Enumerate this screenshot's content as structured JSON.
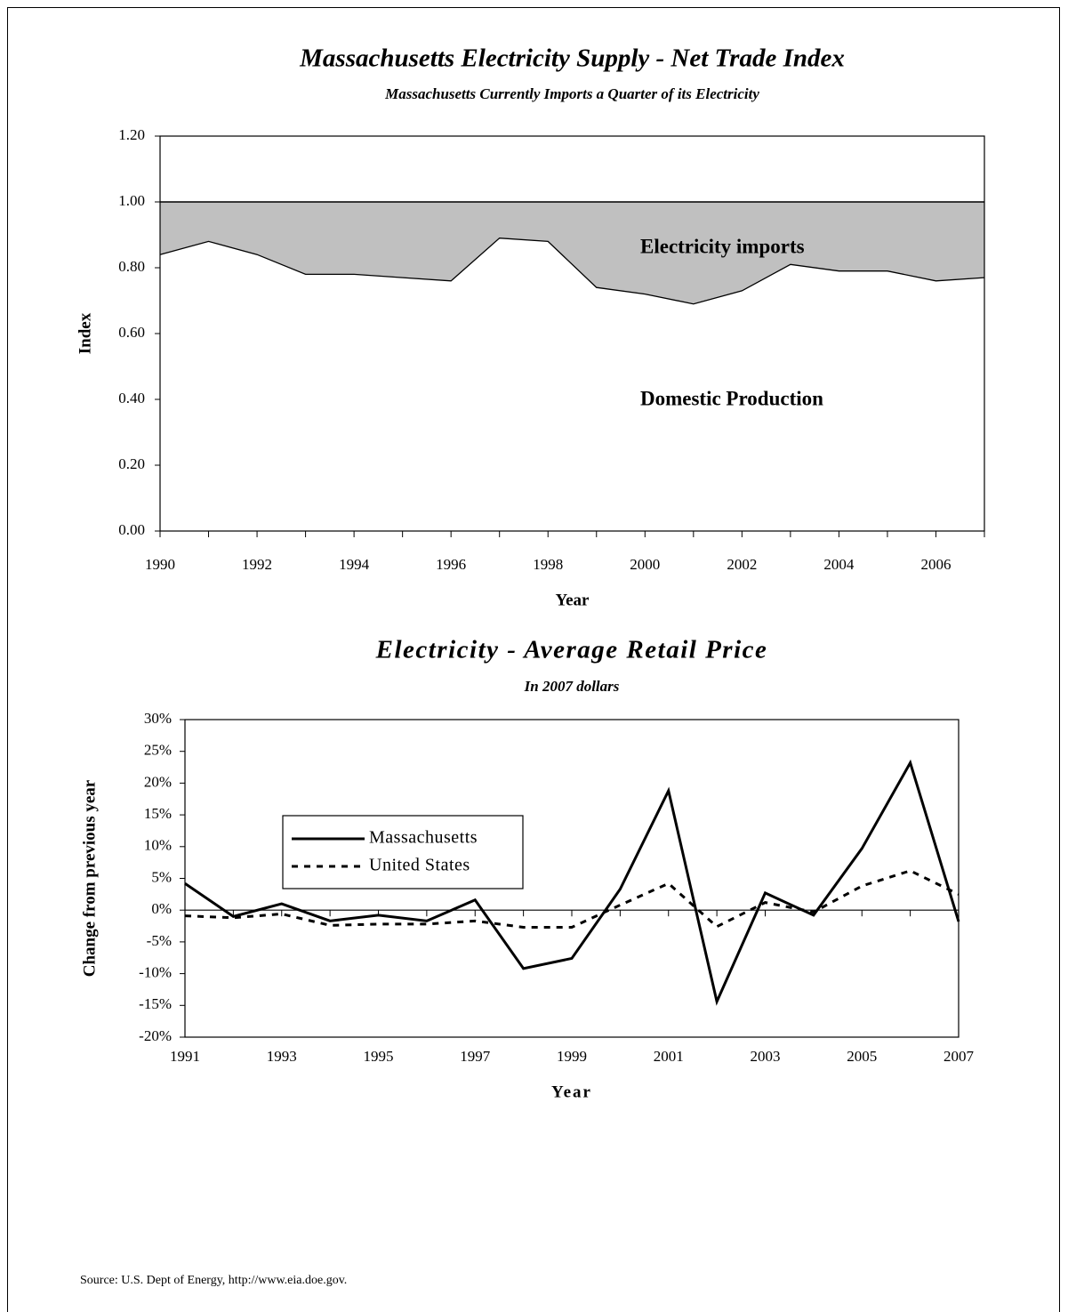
{
  "chart_data": [
    {
      "type": "area",
      "title": "Massachusetts Electricity Supply - Net Trade Index",
      "subtitle": "Massachusetts Currently Imports a Quarter of its Electricity",
      "x_label": "Year",
      "y_label": "Index",
      "x": [
        1990,
        1991,
        1992,
        1993,
        1994,
        1995,
        1996,
        1997,
        1998,
        1999,
        2000,
        2001,
        2002,
        2003,
        2004,
        2005,
        2006,
        2007
      ],
      "values": [
        0.84,
        0.88,
        0.84,
        0.78,
        0.78,
        0.77,
        0.76,
        0.89,
        0.88,
        0.74,
        0.72,
        0.69,
        0.73,
        0.81,
        0.79,
        0.79,
        0.76,
        0.77
      ],
      "color": "#c0c0c0",
      "line_color": "#000000",
      "fill_to": 1,
      "xlim": [
        1990,
        2007
      ],
      "xticks": [
        1990,
        1992,
        1994,
        1996,
        1998,
        2000,
        2002,
        2004,
        2006
      ],
      "ylim": [
        0,
        1.2
      ],
      "yticks": [
        {
          "value": 0,
          "label": "0.00"
        },
        {
          "value": 0.2,
          "label": "0.20"
        },
        {
          "value": 0.4,
          "label": "0.40"
        },
        {
          "value": 0.6,
          "label": "0.60"
        },
        {
          "value": 0.8,
          "label": "0.80"
        },
        {
          "value": 1,
          "label": "1.00"
        },
        {
          "value": 1.2,
          "label": "1.20"
        }
      ],
      "annotations": [
        "Electricity imports",
        "Domestic Production"
      ]
    },
    {
      "type": "line",
      "title": "Electricity - Average Retail Price",
      "subtitle": "In 2007 dollars",
      "x_label": "Year",
      "y_label": "Change from previous year",
      "x": [
        1991,
        1992,
        1993,
        1994,
        1995,
        1996,
        1997,
        1998,
        1999,
        2000,
        2001,
        2002,
        2003,
        2004,
        2005,
        2006,
        2007
      ],
      "series": [
        {
          "name": "Massachusetts",
          "color": "#000000",
          "style": "solid",
          "values": [
            4.2,
            -1.0,
            1.0,
            -1.7,
            -0.8,
            -1.7,
            1.6,
            -9.2,
            -7.6,
            3.3,
            18.8,
            -14.4,
            2.7,
            -0.8,
            9.7,
            23.2,
            -1.8
          ]
        },
        {
          "name": "United States",
          "color": "#000000",
          "style": "dashed",
          "values": [
            -0.9,
            -1.2,
            -0.6,
            -2.4,
            -2.2,
            -2.2,
            -1.7,
            -2.7,
            -2.7,
            0.8,
            4.2,
            -2.6,
            1.2,
            -0.3,
            3.8,
            6.2,
            2.5
          ]
        }
      ],
      "xlim": [
        1991,
        2007
      ],
      "xticks": [
        1991,
        1993,
        1995,
        1997,
        1999,
        2001,
        2003,
        2005,
        2007
      ],
      "ylim": [
        -20,
        30
      ],
      "yticks": [
        {
          "value": -20,
          "label": "-20%"
        },
        {
          "value": -15,
          "label": "-15%"
        },
        {
          "value": -10,
          "label": "-10%"
        },
        {
          "value": -5,
          "label": "-5%"
        },
        {
          "value": 0,
          "label": "0%"
        },
        {
          "value": 5,
          "label": "5%"
        },
        {
          "value": 10,
          "label": "10%"
        },
        {
          "value": 15,
          "label": "15%"
        },
        {
          "value": 20,
          "label": "20%"
        },
        {
          "value": 25,
          "label": "25%"
        },
        {
          "value": 30,
          "label": "30%"
        }
      ],
      "zero_line": true,
      "legend": "upper left"
    }
  ],
  "source": "Source: U.S. Dept of Energy,  http://www.eia.doe.gov."
}
